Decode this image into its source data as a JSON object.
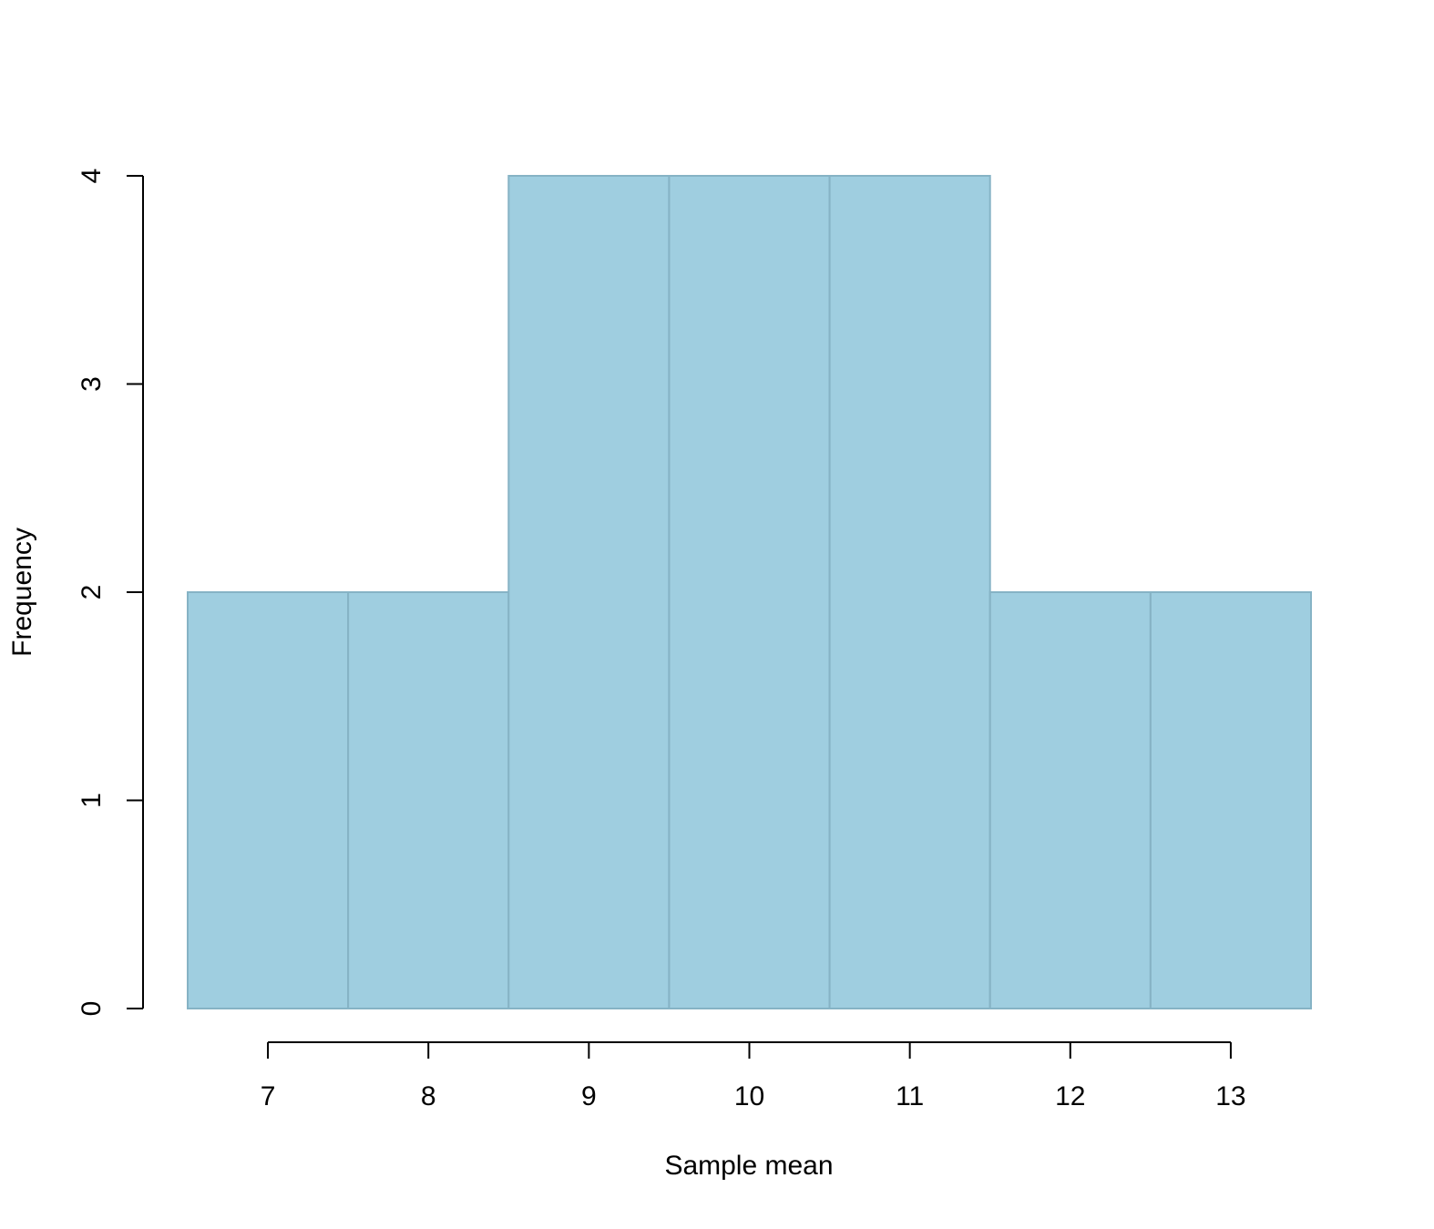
{
  "chart_data": {
    "type": "bar",
    "subtype": "histogram",
    "title": "",
    "xlabel": "Sample mean",
    "ylabel": "Frequency",
    "bins": [
      {
        "start": 6.5,
        "end": 7.5,
        "count": 2
      },
      {
        "start": 7.5,
        "end": 8.5,
        "count": 2
      },
      {
        "start": 8.5,
        "end": 9.5,
        "count": 4
      },
      {
        "start": 9.5,
        "end": 10.5,
        "count": 4
      },
      {
        "start": 10.5,
        "end": 11.5,
        "count": 4
      },
      {
        "start": 11.5,
        "end": 12.5,
        "count": 2
      },
      {
        "start": 12.5,
        "end": 13.5,
        "count": 2
      }
    ],
    "xlim": [
      6.5,
      13.5
    ],
    "ylim": [
      0,
      4
    ],
    "x_ticks": [
      7,
      8,
      9,
      10,
      11,
      12,
      13
    ],
    "x_tick_labels": [
      "7",
      "8",
      "9",
      "10",
      "11",
      "12",
      "13"
    ],
    "y_ticks": [
      0,
      1,
      2,
      3,
      4
    ],
    "y_tick_labels": [
      "0",
      "1",
      "2",
      "3",
      "4"
    ],
    "grid": false,
    "legend": "none",
    "colors": {
      "bar_fill": "#9fcee0",
      "bar_edge": "#86b3c5",
      "axis": "#000000"
    }
  }
}
